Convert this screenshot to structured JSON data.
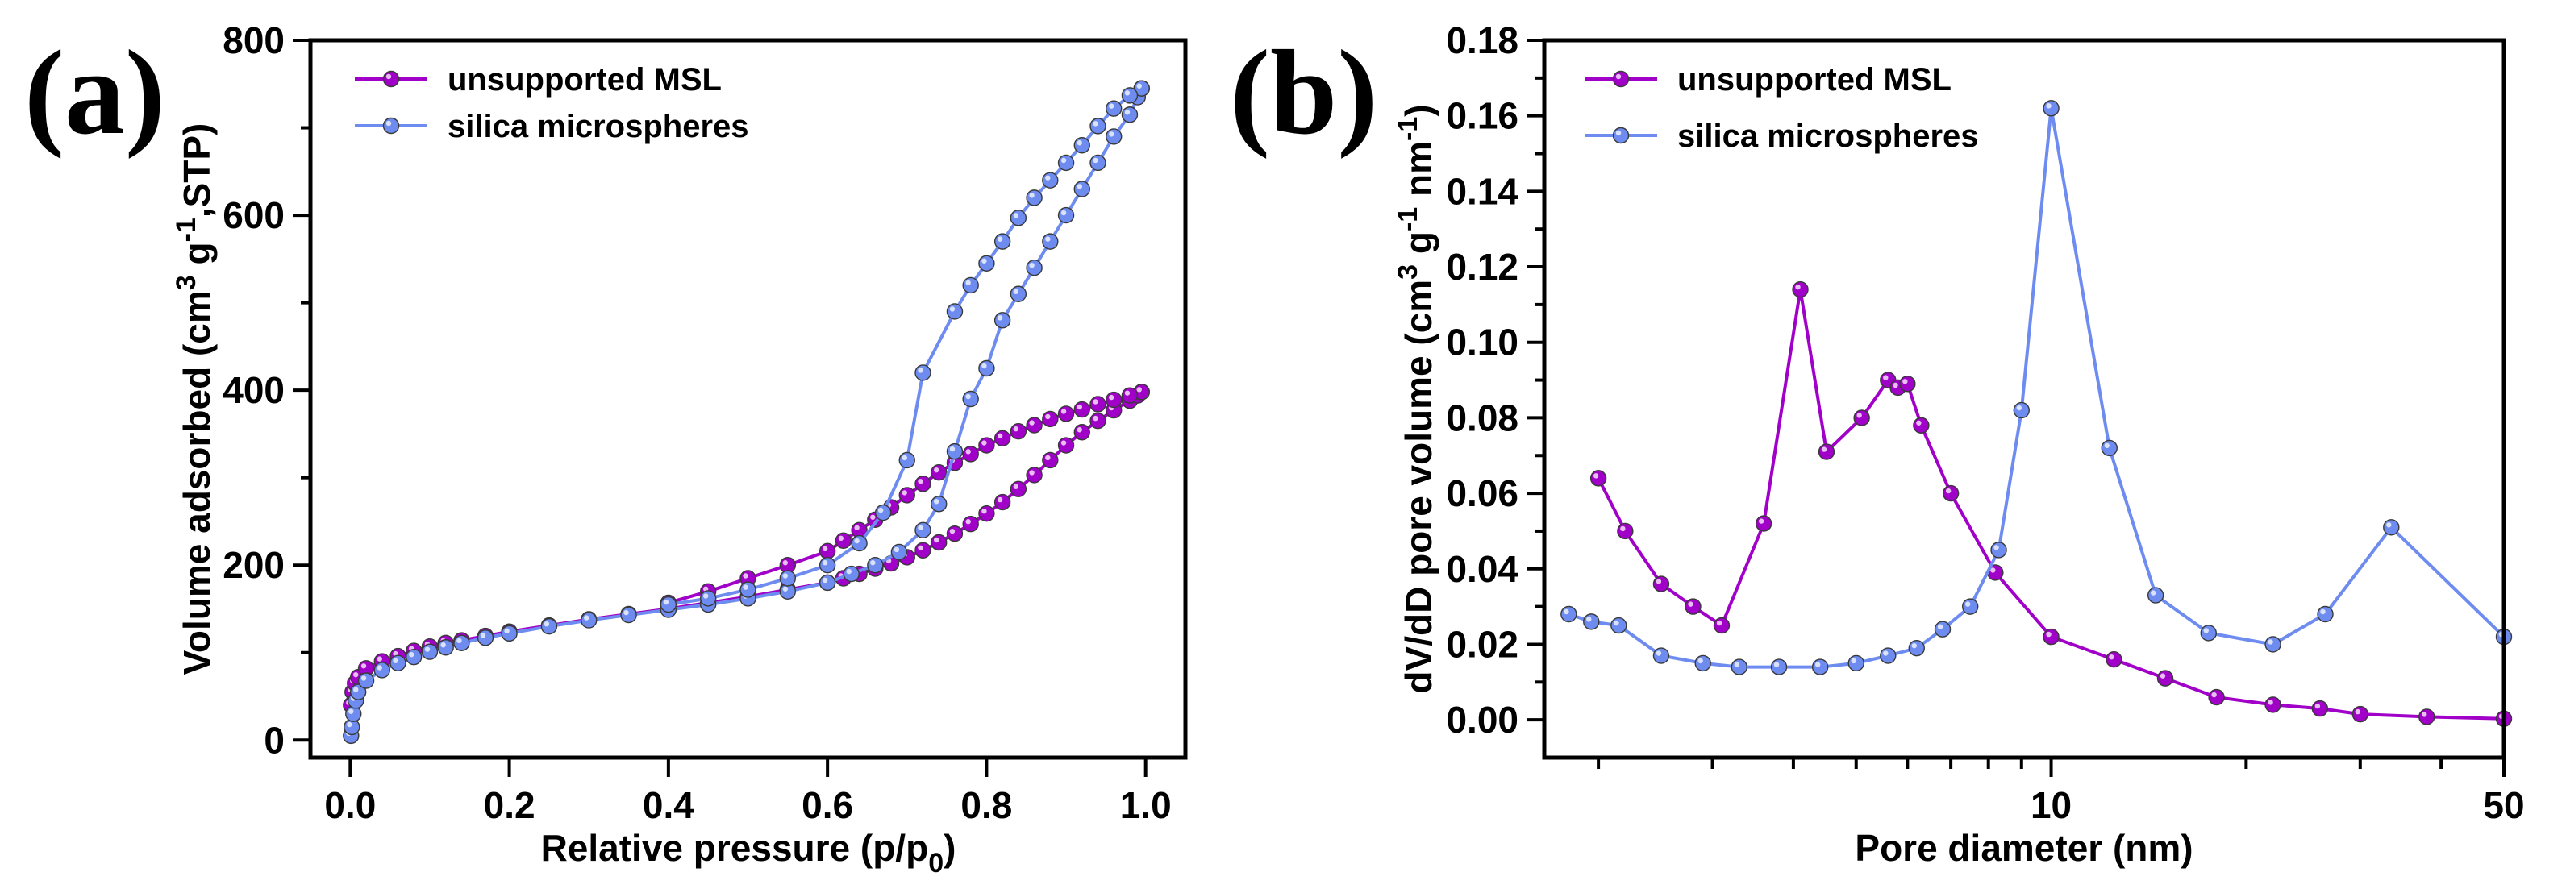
{
  "colors": {
    "msl": "#a000c8",
    "silica": "#6e8cf0"
  },
  "chart_data": [
    {
      "panel": "(a)",
      "type": "line",
      "xlabel": "Relative pressure (p/p",
      "xlabel_sub": "0",
      "xlabel_close": ")",
      "ylabel": "Volume adsorbed (cm",
      "ylabel_sup1": "3",
      "ylabel_mid": " g",
      "ylabel_sup2": "-1",
      "ylabel_end": ",STP)",
      "xlim": [
        -0.05,
        1.05
      ],
      "ylim": [
        -20,
        800
      ],
      "xticks": [
        0.0,
        0.2,
        0.4,
        0.6,
        0.8,
        1.0
      ],
      "xtick_labels": [
        "0.0",
        "0.2",
        "0.4",
        "0.6",
        "0.8",
        "1.0"
      ],
      "yticks": [
        0,
        200,
        400,
        600,
        800
      ],
      "ytick_labels": [
        "0",
        "200",
        "400",
        "600",
        "800"
      ],
      "legend": [
        "unsupported MSL",
        "silica microspheres"
      ],
      "series": [
        {
          "name": "unsupported MSL",
          "color_key": "msl",
          "branches": [
            {
              "x": [
                0.001,
                0.003,
                0.006,
                0.01,
                0.02,
                0.04,
                0.06,
                0.08,
                0.1,
                0.12,
                0.14,
                0.17,
                0.2,
                0.25,
                0.3,
                0.35,
                0.4,
                0.45,
                0.5,
                0.55,
                0.6,
                0.62,
                0.64,
                0.66,
                0.68,
                0.7,
                0.72,
                0.74,
                0.76,
                0.78,
                0.8,
                0.82,
                0.84,
                0.86,
                0.88,
                0.9,
                0.92,
                0.94,
                0.96,
                0.98,
                0.99,
                0.995
              ],
              "y": [
                40,
                55,
                65,
                72,
                82,
                90,
                96,
                102,
                107,
                111,
                114,
                119,
                124,
                131,
                138,
                144,
                150,
                157,
                164,
                172,
                180,
                185,
                190,
                196,
                202,
                209,
                217,
                226,
                236,
                247,
                259,
                272,
                287,
                303,
                320,
                337,
                352,
                365,
                377,
                388,
                394,
                398
              ]
            },
            {
              "x": [
                0.995,
                0.98,
                0.96,
                0.94,
                0.92,
                0.9,
                0.88,
                0.86,
                0.84,
                0.82,
                0.8,
                0.78,
                0.76,
                0.74,
                0.72,
                0.7,
                0.68,
                0.66,
                0.64,
                0.62,
                0.6,
                0.55,
                0.5,
                0.45,
                0.4
              ],
              "y": [
                398,
                394,
                389,
                384,
                378,
                373,
                367,
                360,
                353,
                345,
                337,
                327,
                317,
                306,
                293,
                280,
                266,
                252,
                240,
                228,
                216,
                200,
                185,
                170,
                157
              ]
            }
          ]
        },
        {
          "name": "silica microspheres",
          "color_key": "silica",
          "branches": [
            {
              "x": [
                0.001,
                0.002,
                0.004,
                0.007,
                0.01,
                0.02,
                0.04,
                0.06,
                0.08,
                0.1,
                0.12,
                0.14,
                0.17,
                0.2,
                0.25,
                0.3,
                0.35,
                0.4,
                0.45,
                0.5,
                0.55,
                0.6,
                0.63,
                0.66,
                0.69,
                0.72,
                0.74,
                0.76,
                0.78,
                0.8,
                0.82,
                0.84,
                0.86,
                0.88,
                0.9,
                0.92,
                0.94,
                0.96,
                0.98,
                0.99,
                0.995
              ],
              "y": [
                5,
                15,
                30,
                45,
                55,
                68,
                80,
                88,
                95,
                101,
                106,
                111,
                117,
                122,
                130,
                137,
                143,
                149,
                155,
                162,
                170,
                180,
                190,
                200,
                215,
                240,
                270,
                330,
                390,
                425,
                480,
                510,
                540,
                570,
                600,
                630,
                660,
                690,
                715,
                735,
                745
              ]
            },
            {
              "x": [
                0.995,
                0.98,
                0.96,
                0.94,
                0.92,
                0.9,
                0.88,
                0.86,
                0.84,
                0.82,
                0.8,
                0.78,
                0.76,
                0.72,
                0.7,
                0.67,
                0.64,
                0.6,
                0.55,
                0.5,
                0.45,
                0.4
              ],
              "y": [
                745,
                737,
                722,
                702,
                680,
                660,
                640,
                620,
                597,
                570,
                545,
                520,
                490,
                420,
                320,
                260,
                225,
                200,
                185,
                172,
                162,
                155
              ]
            }
          ]
        }
      ]
    },
    {
      "panel": "(b)",
      "type": "line",
      "xscale": "log",
      "xlabel": "Pore diameter (nm)",
      "ylabel": "dV/dD pore volume (cm",
      "ylabel_sup1": "3",
      "ylabel_mid": " g",
      "ylabel_sup2": "-1",
      "ylabel_mid2": " nm",
      "ylabel_sup3": "-1",
      "ylabel_end": ")",
      "xlim": [
        1.65,
        50
      ],
      "ylim": [
        -0.01,
        0.18
      ],
      "xticks": [
        10,
        50
      ],
      "xtick_labels": [
        "10",
        "50"
      ],
      "yticks": [
        0.0,
        0.02,
        0.04,
        0.06,
        0.08,
        0.1,
        0.12,
        0.14,
        0.16,
        0.18
      ],
      "ytick_labels": [
        "0.00",
        "0.02",
        "0.04",
        "0.06",
        "0.08",
        "0.10",
        "0.12",
        "0.14",
        "0.16",
        "0.18"
      ],
      "legend": [
        "unsupported MSL",
        "silica microspheres"
      ],
      "series": [
        {
          "name": "unsupported MSL",
          "color_key": "msl",
          "x": [
            2.0,
            2.2,
            2.5,
            2.8,
            3.1,
            3.6,
            4.1,
            4.5,
            5.1,
            5.6,
            5.8,
            6.0,
            6.3,
            7.0,
            8.2,
            10.0,
            12.5,
            15.0,
            18.0,
            22.0,
            26.0,
            30.0,
            38.0,
            50.0
          ],
          "y": [
            0.064,
            0.05,
            0.036,
            0.03,
            0.025,
            0.052,
            0.114,
            0.071,
            0.08,
            0.09,
            0.088,
            0.089,
            0.078,
            0.06,
            0.039,
            0.022,
            0.016,
            0.011,
            0.006,
            0.004,
            0.003,
            0.0015,
            0.0008,
            0.0003
          ]
        },
        {
          "name": "silica microspheres",
          "color_key": "silica",
          "x": [
            1.8,
            1.95,
            2.15,
            2.5,
            2.9,
            3.3,
            3.8,
            4.4,
            5.0,
            5.6,
            6.2,
            6.8,
            7.5,
            8.3,
            9.0,
            10.0,
            12.3,
            14.5,
            17.5,
            22.0,
            26.5,
            33.5,
            50.0
          ],
          "y": [
            0.028,
            0.026,
            0.025,
            0.017,
            0.015,
            0.014,
            0.014,
            0.014,
            0.015,
            0.017,
            0.019,
            0.024,
            0.03,
            0.045,
            0.082,
            0.162,
            0.072,
            0.033,
            0.023,
            0.02,
            0.028,
            0.051,
            0.022
          ]
        }
      ]
    }
  ]
}
